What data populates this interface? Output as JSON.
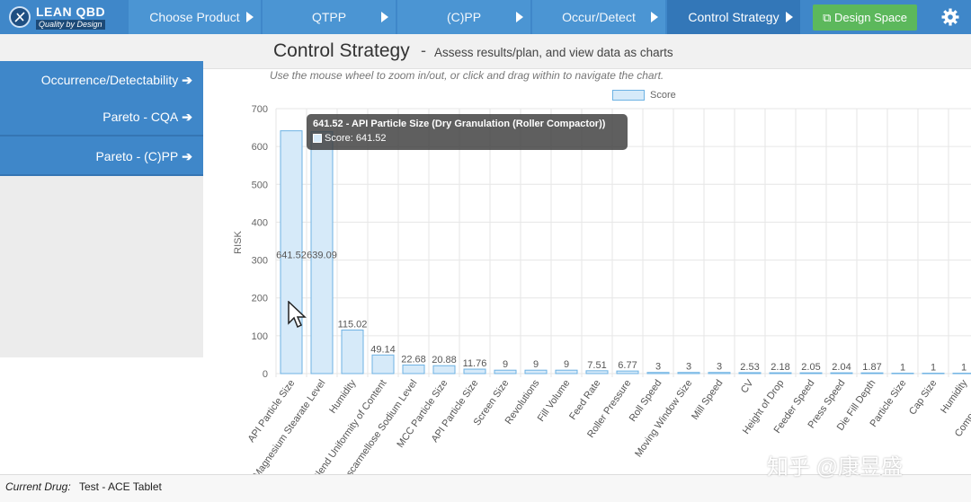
{
  "app": {
    "logo_title": "LEAN QBD",
    "logo_subtitle": "Quality by Design"
  },
  "nav": {
    "steps": [
      {
        "label": "Choose Product"
      },
      {
        "label": "QTPP"
      },
      {
        "label": "(C)PP"
      },
      {
        "label": "Occur/Detect"
      },
      {
        "label": "Control Strategy"
      }
    ],
    "design_space_label": "Design Space"
  },
  "header": {
    "title": "Control Strategy",
    "dash": "-",
    "subtitle": "Assess results/plan, and view data as charts"
  },
  "sidebar": {
    "items": [
      {
        "label": "Occurrence/Detectability"
      },
      {
        "label": "Pareto - CQA"
      },
      {
        "label": "Pareto - (C)PP"
      }
    ]
  },
  "hint": "Use the mouse wheel to zoom in/out, or click and drag within to navigate the chart.",
  "tooltip": {
    "title": "641.52 - API Particle Size (Dry Granulation (Roller Compactor))",
    "line": "Score: 641.52"
  },
  "footer": {
    "label": "Current Drug:",
    "value": "Test - ACE Tablet"
  },
  "watermark": "知乎 @康昱盛",
  "colors": {
    "nav": "#3f87c9",
    "bar_fill": "#d6eaf9",
    "bar_stroke": "#6db2e3",
    "design_btn": "#5cb85c"
  },
  "chart_data": {
    "type": "bar",
    "ylabel": "RISK",
    "ylim": [
      0,
      700
    ],
    "yticks": [
      0,
      100,
      200,
      300,
      400,
      500,
      600,
      700
    ],
    "legend": "Score",
    "legend_position": "top-center",
    "categories": [
      "API Particle Size",
      "Magnesium Stearate Level",
      "Humidity",
      "Blend Uniformity of Content",
      "Croscarmellose Sodium Level",
      "MCC Particle Size",
      "API Particle Size",
      "Screen Size",
      "Revolutions",
      "Fill Volume",
      "Feed Rate",
      "Roller Pressure",
      "Roll Speed",
      "Moving Window Size",
      "Mill Speed",
      "CV",
      "Height of Drop",
      "Feeder Speed",
      "Press Speed",
      "Die Fill Depth",
      "Particle Size",
      "Cap Size",
      "Humidity",
      "Compression F",
      "Com"
    ],
    "values": [
      641.52,
      639.09,
      115.02,
      49.14,
      22.68,
      20.88,
      11.76,
      9,
      9,
      9,
      7.51,
      6.77,
      3,
      3,
      3,
      2.53,
      2.18,
      2.05,
      2.04,
      1.87,
      1,
      1,
      1,
      null,
      null
    ],
    "value_labels": [
      "641.52",
      "639.09",
      "115.02",
      "49.14",
      "22.68",
      "20.88",
      "11.76",
      "9",
      "9",
      "9",
      "7.51",
      "6.77",
      "3",
      "3",
      "3",
      "2.53",
      "2.18",
      "2.05",
      "2.04",
      "1.87",
      "1",
      "1",
      "1",
      "",
      ""
    ]
  }
}
